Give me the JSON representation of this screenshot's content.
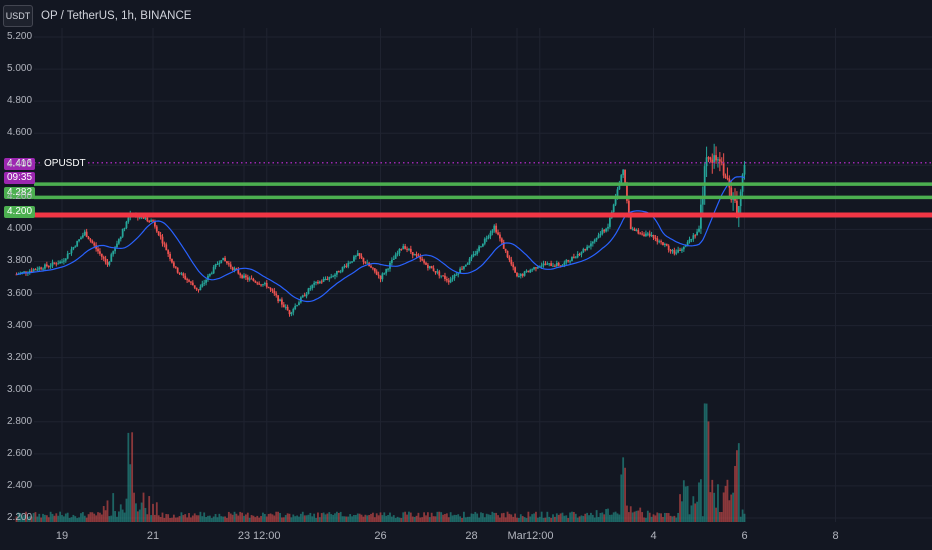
{
  "header": {
    "currency": "USDT",
    "title": "OP / TetherUS, 1h, BINANCE"
  },
  "price_axis": {
    "ticks": [
      "5.200",
      "5.000",
      "4.800",
      "4.600",
      "4.400",
      "4.200",
      "4.000",
      "3.800",
      "3.600",
      "3.400",
      "3.200",
      "3.000",
      "2.800",
      "2.600",
      "2.400",
      "2.200"
    ]
  },
  "time_axis": {
    "ticks": [
      "19",
      "21",
      "23",
      "12:00",
      "26",
      "28",
      "Mar",
      "12:00",
      "4",
      "6",
      "8"
    ]
  },
  "markers": {
    "last_price": "4.416",
    "symbol": "OPUSDT",
    "countdown": "09:35",
    "green_levels": [
      "4.282",
      "4.200"
    ]
  },
  "colors": {
    "background": "#131722",
    "up": "#26a69a",
    "down": "#ef5350",
    "ma": "#2962ff",
    "last_price": "#9c27b0",
    "support": "#4caf50",
    "resistance": "#f23645"
  },
  "chart_data": {
    "type": "candlestick",
    "symbol": "OP / TetherUS",
    "interval": "1h",
    "exchange": "BINANCE",
    "y_range": [
      2.2,
      5.2
    ],
    "horizontal_lines": [
      {
        "price": 4.416,
        "style": "dotted",
        "color": "#9c27b0"
      },
      {
        "price": 4.282,
        "style": "solid",
        "color": "#4caf50"
      },
      {
        "price": 4.2,
        "style": "solid",
        "color": "#4caf50"
      },
      {
        "price": 4.09,
        "style": "solid",
        "color": "#f23645"
      }
    ],
    "price_path": [
      {
        "t": "18",
        "p": 3.72
      },
      {
        "t": "19",
        "p": 3.8
      },
      {
        "t": "19 12:00",
        "p": 3.98
      },
      {
        "t": "20",
        "p": 3.78
      },
      {
        "t": "20 12:00",
        "p": 4.1
      },
      {
        "t": "21",
        "p": 4.05
      },
      {
        "t": "21 12:00",
        "p": 3.75
      },
      {
        "t": "22",
        "p": 3.62
      },
      {
        "t": "22 12:00",
        "p": 3.82
      },
      {
        "t": "23",
        "p": 3.7
      },
      {
        "t": "23 12:00",
        "p": 3.65
      },
      {
        "t": "24",
        "p": 3.48
      },
      {
        "t": "24 12:00",
        "p": 3.65
      },
      {
        "t": "25",
        "p": 3.72
      },
      {
        "t": "25 12:00",
        "p": 3.84
      },
      {
        "t": "26",
        "p": 3.7
      },
      {
        "t": "26 12:00",
        "p": 3.9
      },
      {
        "t": "27",
        "p": 3.78
      },
      {
        "t": "27 12:00",
        "p": 3.68
      },
      {
        "t": "28",
        "p": 3.82
      },
      {
        "t": "28 12:00",
        "p": 4.02
      },
      {
        "t": "Mar",
        "p": 3.7
      },
      {
        "t": "Mar 12:00",
        "p": 3.78
      },
      {
        "t": "2",
        "p": 3.78
      },
      {
        "t": "2 12:00",
        "p": 3.88
      },
      {
        "t": "3",
        "p": 4.02
      },
      {
        "t": "3 08:00",
        "p": 4.38
      },
      {
        "t": "3 12:00",
        "p": 4.0
      },
      {
        "t": "4",
        "p": 3.95
      },
      {
        "t": "4 12:00",
        "p": 3.85
      },
      {
        "t": "5",
        "p": 4.0
      },
      {
        "t": "5 04:00",
        "p": 4.48
      },
      {
        "t": "5 12:00",
        "p": 4.4
      },
      {
        "t": "5 20:00",
        "p": 4.1
      },
      {
        "t": "6",
        "p": 4.416
      }
    ],
    "volume_peaks": [
      {
        "t": "20 12:00",
        "rel": 0.7
      },
      {
        "t": "3 08:00",
        "rel": 0.5
      },
      {
        "t": "5 04:00",
        "rel": 1.0
      },
      {
        "t": "5 20:00",
        "rel": 0.7
      }
    ]
  }
}
